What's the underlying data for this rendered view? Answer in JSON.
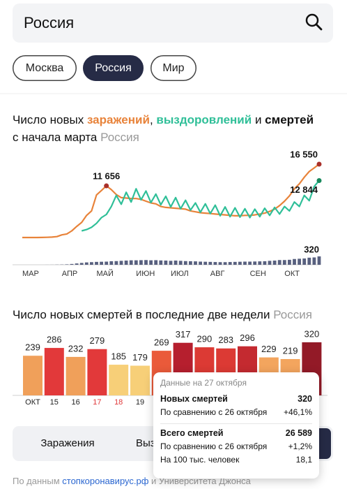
{
  "search": {
    "query": "Россия"
  },
  "tabs": {
    "items": [
      "Москва",
      "Россия",
      "Мир"
    ],
    "active": 1
  },
  "chart_data": [
    {
      "type": "line",
      "title": "Число новых",
      "title_separators": [
        ",",
        "и"
      ],
      "subtitle": "с начала марта",
      "region": "Россия",
      "categories": [
        "МАР",
        null,
        null,
        null,
        null,
        null,
        null,
        null,
        "АПР",
        null,
        null,
        null,
        null,
        null,
        null,
        "МАЙ",
        null,
        null,
        null,
        null,
        null,
        null,
        null,
        "ИЮН",
        null,
        null,
        null,
        null,
        null,
        null,
        "ИЮЛ",
        null,
        null,
        null,
        null,
        null,
        null,
        null,
        "АВГ",
        null,
        null,
        null,
        null,
        null,
        null,
        null,
        "СЕН",
        null,
        null,
        null,
        null,
        null,
        null,
        "ОКТ",
        null,
        null,
        null,
        null,
        null,
        null,
        null
      ],
      "series": [
        {
          "name": "заражений",
          "color": "#e8833a",
          "values": [
            0,
            0,
            0,
            3,
            20,
            50,
            100,
            200,
            600,
            800,
            1500,
            2500,
            3400,
            5000,
            6000,
            9600,
            10600,
            11656,
            10800,
            9700,
            9000,
            8900,
            8800,
            8800,
            8600,
            8200,
            7800,
            7600,
            7000,
            6800,
            6700,
            6600,
            6500,
            6400,
            6000,
            5800,
            5600,
            5500,
            5400,
            5300,
            5200,
            5100,
            5000,
            4900,
            4900,
            5000,
            5000,
            5100,
            5300,
            5500,
            5900,
            6400,
            7200,
            8200,
            9400,
            11000,
            12100,
            13600,
            14900,
            15700,
            16550
          ],
          "value_labels": [
            null,
            null,
            null,
            null,
            null,
            null,
            null,
            null,
            null,
            null,
            null,
            null,
            null,
            null,
            null,
            null,
            null,
            "11 656",
            null,
            null,
            null,
            null,
            null,
            null,
            null,
            null,
            null,
            null,
            null,
            null,
            null,
            null,
            null,
            null,
            null,
            null,
            null,
            null,
            null,
            null,
            null,
            null,
            null,
            null,
            null,
            null,
            null,
            null,
            null,
            null,
            null,
            null,
            null,
            null,
            null,
            null,
            null,
            null,
            null,
            null,
            "16 550"
          ]
        },
        {
          "name": "выздоровлений",
          "color": "#2fbf98",
          "values": [
            null,
            null,
            null,
            null,
            null,
            null,
            null,
            null,
            null,
            null,
            null,
            null,
            1500,
            1800,
            2300,
            3200,
            4500,
            5200,
            7000,
            9500,
            7500,
            10200,
            8000,
            11000,
            8500,
            10500,
            7900,
            9800,
            7400,
            9300,
            6900,
            9000,
            6500,
            8400,
            6200,
            7800,
            5700,
            7600,
            5400,
            7300,
            4900,
            6900,
            4700,
            6700,
            4600,
            6500,
            4500,
            6400,
            4700,
            6600,
            5000,
            6800,
            5300,
            7000,
            6000,
            8000,
            7000,
            9500,
            8300,
            11500,
            12844
          ],
          "value_labels": [
            null,
            null,
            null,
            null,
            null,
            null,
            null,
            null,
            null,
            null,
            null,
            null,
            null,
            null,
            null,
            null,
            null,
            null,
            null,
            null,
            null,
            null,
            null,
            null,
            null,
            null,
            null,
            null,
            null,
            null,
            null,
            null,
            null,
            null,
            null,
            null,
            null,
            null,
            null,
            null,
            null,
            null,
            null,
            null,
            null,
            null,
            null,
            null,
            null,
            null,
            null,
            null,
            null,
            null,
            null,
            null,
            null,
            null,
            null,
            null,
            "12 844"
          ]
        },
        {
          "name": "смертей",
          "color": "#3b4468",
          "type": "bar",
          "values": [
            0,
            0,
            0,
            0,
            0,
            1,
            2,
            5,
            8,
            15,
            30,
            50,
            70,
            90,
            100,
            110,
            115,
            120,
            135,
            140,
            150,
            160,
            170,
            170,
            175,
            180,
            170,
            175,
            165,
            160,
            150,
            160,
            150,
            140,
            135,
            130,
            120,
            115,
            110,
            105,
            100,
            100,
            105,
            110,
            115,
            120,
            120,
            125,
            130,
            135,
            150,
            160,
            180,
            180,
            190,
            220,
            230,
            240,
            270,
            280,
            320
          ]
        }
      ]
    },
    {
      "type": "bar",
      "title": "Число новых смертей в последние две недели",
      "region": "Россия",
      "categories": [
        "ОКТ",
        "15",
        "16",
        "17",
        "18",
        "19",
        null,
        null,
        null,
        null,
        null,
        null,
        null,
        null
      ],
      "category_colors": [
        "#222222",
        "#222222",
        "#222222",
        "#e0393a",
        "#e0393a",
        "#222222",
        "#222222",
        "#222222",
        "#222222",
        "#222222",
        "#222222",
        "#222222",
        "#222222",
        "#222222"
      ],
      "values": [
        239,
        286,
        232,
        279,
        185,
        179,
        269,
        317,
        290,
        283,
        296,
        229,
        219,
        320
      ],
      "colors": [
        "#f0a05a",
        "#e2393a",
        "#f0a05a",
        "#e2393a",
        "#f7cf78",
        "#f7cf78",
        "#ea5a3a",
        "#b61f2e",
        "#dc3a34",
        "#dc3a34",
        "#c42a30",
        "#f3a55e",
        "#f3a55e",
        "#931a27"
      ],
      "tooltip": {
        "title": "Данные на 27 октября",
        "rows": [
          {
            "label": "Новых смертей",
            "value": "320"
          },
          {
            "label": "По сравнению с 26 октября",
            "value": "+46,1%"
          },
          {
            "label": "Всего смертей",
            "value": "26 589"
          },
          {
            "label": "По сравнению с 26 октября",
            "value": "+1,2%"
          },
          {
            "label": "На 100 тыс. человек",
            "value": "18,1"
          }
        ]
      }
    }
  ],
  "bottom_tabs": [
    "Заражения",
    "Выздоровления"
  ],
  "footer": {
    "prefix": "По данным",
    "link": "стопкоронавирус.рф",
    "suffix": "и Университета Джонса"
  }
}
